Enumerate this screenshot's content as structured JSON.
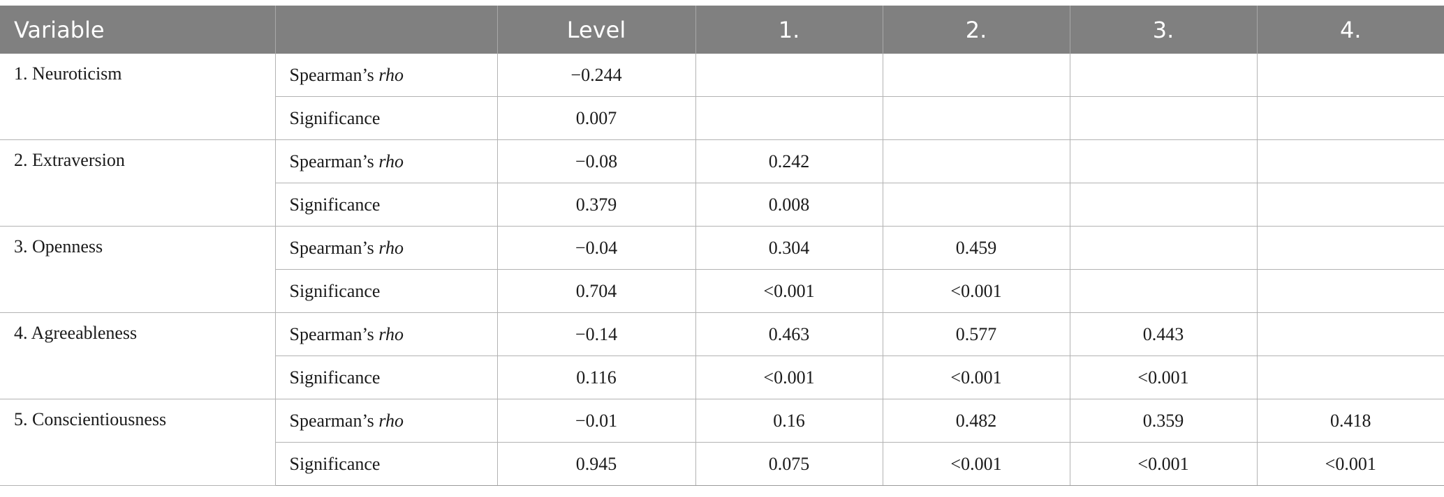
{
  "headers": [
    "Variable",
    "",
    "Level",
    "1.",
    "2.",
    "3.",
    "4."
  ],
  "rows": [
    {
      "variable": "1. Neuroticism",
      "rho_label": "Spearman’s",
      "rho_italic": "rho",
      "sig_label": "Significance",
      "rho": [
        "−0.244",
        "",
        "",
        "",
        ""
      ],
      "sig": [
        "0.007",
        "",
        "",
        "",
        ""
      ]
    },
    {
      "variable": "2. Extraversion",
      "rho_label": "Spearman’s",
      "rho_italic": "rho",
      "sig_label": "Significance",
      "rho": [
        "−0.08",
        "0.242",
        "",
        "",
        ""
      ],
      "sig": [
        "0.379",
        "0.008",
        "",
        "",
        ""
      ]
    },
    {
      "variable": "3. Openness",
      "rho_label": "Spearman’s",
      "rho_italic": "rho",
      "sig_label": "Significance",
      "rho": [
        "−0.04",
        "0.304",
        "0.459",
        "",
        ""
      ],
      "sig": [
        "0.704",
        "<0.001",
        "<0.001",
        "",
        ""
      ]
    },
    {
      "variable": "4. Agreeableness",
      "rho_label": "Spearman’s",
      "rho_italic": "rho",
      "sig_label": "Significance",
      "rho": [
        "−0.14",
        "0.463",
        "0.577",
        "0.443",
        ""
      ],
      "sig": [
        "0.116",
        "<0.001",
        "<0.001",
        "<0.001",
        ""
      ]
    },
    {
      "variable": "5. Conscientiousness",
      "rho_label": "Spearman’s",
      "rho_italic": "rho",
      "sig_label": "Significance",
      "rho": [
        "−0.01",
        "0.16",
        "0.482",
        "0.359",
        "0.418"
      ],
      "sig": [
        "0.945",
        "0.075",
        "<0.001",
        "<0.001",
        "<0.001"
      ]
    }
  ]
}
